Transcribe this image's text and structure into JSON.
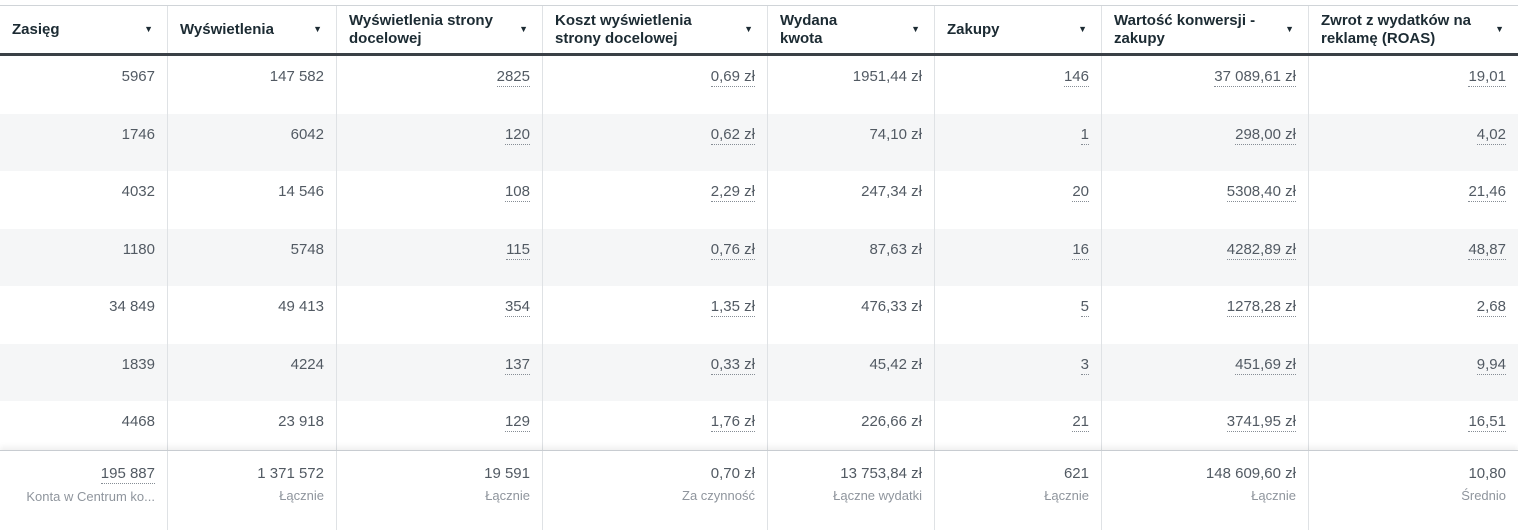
{
  "app": "ads-manager-metrics-table",
  "colors": {
    "header_text": "#1c2b33",
    "value_text": "#525a63",
    "subtitle_text": "#8f959d",
    "row_stripe": "#f5f6f7",
    "column_border": "#dfe2e5",
    "header_underline": "#3a4046",
    "totals_border": "#c8ccd1"
  },
  "icons": {
    "sort": "caret-down-icon",
    "sort_glyph": "▼"
  },
  "table": {
    "columns": [
      {
        "key": "zasieg",
        "label": "Zasięg"
      },
      {
        "key": "wyswietlenia",
        "label": "Wyświetlenia"
      },
      {
        "key": "wyswietlenia-strony-docelowej",
        "label": "Wyświetlenia strony docelowej"
      },
      {
        "key": "koszt-wyswietlenia-strony-docelowej",
        "label": "Koszt wyświetlenia strony docelowej"
      },
      {
        "key": "wydana-kwota",
        "label": "Wydana kwota"
      },
      {
        "key": "zakupy",
        "label": "Zakupy"
      },
      {
        "key": "wartosc-konwersji-zakupy",
        "label": "Wartość konwersji - zakupy"
      },
      {
        "key": "roas",
        "label": "Zwrot z wydatków na reklamę (ROAS)"
      }
    ],
    "dotted_columns": [
      2,
      3,
      5,
      6,
      7
    ],
    "rows": [
      [
        "5967",
        "147 582",
        "2825",
        "0,69 zł",
        "1951,44 zł",
        "146",
        "37 089,61 zł",
        "19,01"
      ],
      [
        "1746",
        "6042",
        "120",
        "0,62 zł",
        "74,10 zł",
        "1",
        "298,00 zł",
        "4,02"
      ],
      [
        "4032",
        "14 546",
        "108",
        "2,29 zł",
        "247,34 zł",
        "20",
        "5308,40 zł",
        "21,46"
      ],
      [
        "1180",
        "5748",
        "115",
        "0,76 zł",
        "87,63 zł",
        "16",
        "4282,89 zł",
        "48,87"
      ],
      [
        "34 849",
        "49 413",
        "354",
        "1,35 zł",
        "476,33 zł",
        "5",
        "1278,28 zł",
        "2,68"
      ],
      [
        "1839",
        "4224",
        "137",
        "0,33 zł",
        "45,42 zł",
        "3",
        "451,69 zł",
        "9,94"
      ],
      [
        "4468",
        "23 918",
        "129",
        "1,76 zł",
        "226,66 zł",
        "21",
        "3741,95 zł",
        "16,51"
      ]
    ],
    "totals": {
      "values": [
        "195 887",
        "1 371 572",
        "19 591",
        "0,70 zł",
        "13 753,84 zł",
        "621",
        "148 609,60 zł",
        "10,80"
      ],
      "subtitles": [
        "Konta w Centrum ko...",
        "Łącznie",
        "Łącznie",
        "Za czynność",
        "Łączne wydatki",
        "Łącznie",
        "Łącznie",
        "Średnio"
      ],
      "dotted_columns": [
        0
      ]
    }
  }
}
